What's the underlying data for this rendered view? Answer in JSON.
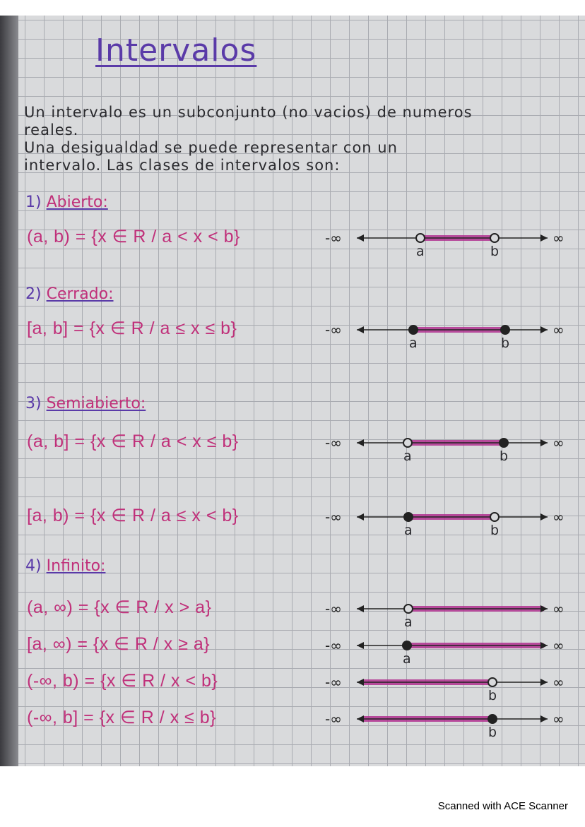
{
  "title": "Intervalos",
  "paragraph": [
    "Un intervalo es un subconjunto (no vacios) de numeros",
    "reales.",
    "Una desigualdad se puede representar con un",
    "intervalo. Las clases de intervalos son:"
  ],
  "sections": [
    {
      "number": "1)",
      "label": "Abierto:"
    },
    {
      "number": "2)",
      "label": "Cerrado:"
    },
    {
      "number": "3)",
      "label": "Semiabierto:"
    },
    {
      "number": "4)",
      "label": "Infinito:"
    }
  ],
  "intervals": [
    {
      "notation": "(a, b) = {x ∈ R / a < x < b}",
      "minus_inf": "-∞",
      "plus_inf": "∞",
      "left": {
        "label": "a",
        "type": "open"
      },
      "right": {
        "label": "b",
        "type": "open"
      }
    },
    {
      "notation": "[a, b] = {x ∈ R / a ≤ x ≤ b}",
      "minus_inf": "-∞",
      "plus_inf": "∞",
      "left": {
        "label": "a",
        "type": "closed"
      },
      "right": {
        "label": "b",
        "type": "closed"
      }
    },
    {
      "notation": "(a, b] = {x ∈ R / a < x ≤ b}",
      "minus_inf": "-∞",
      "plus_inf": "∞",
      "left": {
        "label": "a",
        "type": "open"
      },
      "right": {
        "label": "b",
        "type": "closed"
      }
    },
    {
      "notation": "[a, b) = {x ∈ R / a ≤ x < b}",
      "minus_inf": "-∞",
      "plus_inf": "∞",
      "left": {
        "label": "a",
        "type": "closed"
      },
      "right": {
        "label": "b",
        "type": "open"
      }
    },
    {
      "notation": "(a, ∞) = {x ∈ R / x > a}",
      "minus_inf": "-∞",
      "plus_inf": "∞",
      "left": {
        "label": "a",
        "type": "open"
      },
      "right": null
    },
    {
      "notation": "[a, ∞) = {x ∈ R / x ≥ a}",
      "minus_inf": "-∞",
      "plus_inf": "∞",
      "left": {
        "label": "a",
        "type": "closed"
      },
      "right": null
    },
    {
      "notation": "(-∞, b) = {x ∈ R / x < b}",
      "minus_inf": "-∞",
      "plus_inf": "∞",
      "left": null,
      "right": {
        "label": "b",
        "type": "open"
      }
    },
    {
      "notation": "(-∞, b] = {x ∈ R / x ≤ b}",
      "minus_inf": "-∞",
      "plus_inf": "∞",
      "left": null,
      "right": {
        "label": "b",
        "type": "closed"
      }
    }
  ],
  "colors": {
    "ink": "#2a2a2e",
    "pink": "#c0307a",
    "purple": "#5a3aa8",
    "highlight": "#b0308f"
  },
  "footer": "Scanned with ACE Scanner"
}
